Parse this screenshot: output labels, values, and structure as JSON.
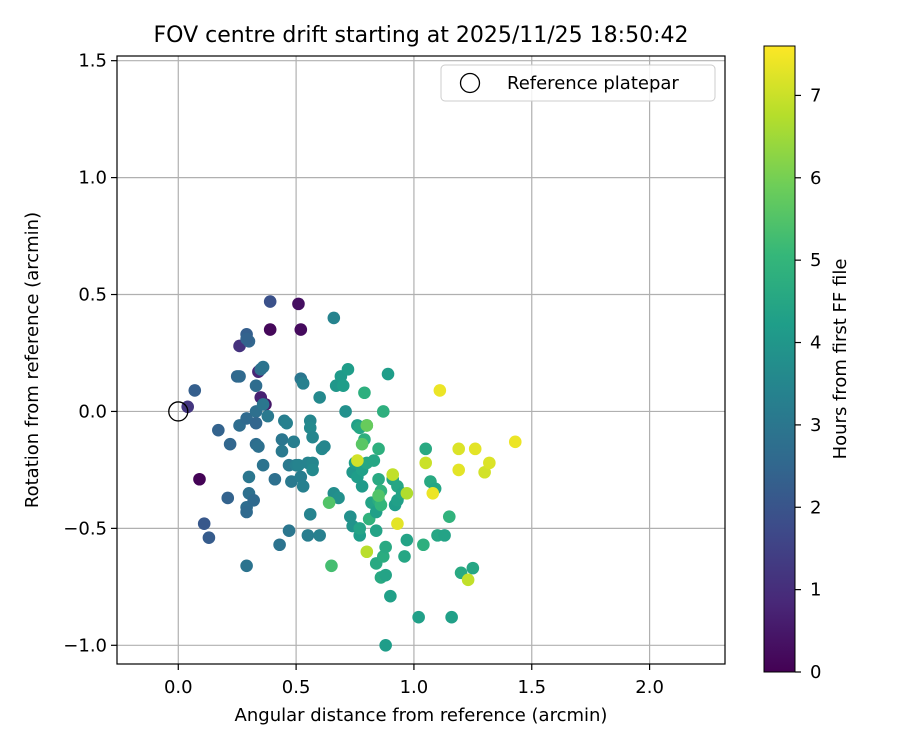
{
  "chart_data": {
    "type": "scatter",
    "title": "FOV centre drift starting at 2025/11/25 18:50:42",
    "xlabel": "Angular distance from reference (arcmin)",
    "ylabel": "Rotation from reference (arcmin)",
    "xlim": [
      -0.26,
      2.32
    ],
    "ylim": [
      -1.08,
      1.52
    ],
    "xticks": [
      0.0,
      0.5,
      1.0,
      1.5,
      2.0
    ],
    "xtick_labels": [
      "0.0",
      "0.5",
      "1.0",
      "1.5",
      "2.0"
    ],
    "yticks": [
      -1.0,
      -0.5,
      0.0,
      0.5,
      1.0,
      1.5
    ],
    "ytick_labels": [
      "−1.0",
      "−0.5",
      "0.0",
      "0.5",
      "1.0",
      "1.5"
    ],
    "grid": true,
    "legend": {
      "position": "top-right",
      "label": "Reference platepar"
    },
    "reference_point": {
      "x": 0.0,
      "y": 0.0
    },
    "colorbar": {
      "label": "Hours from first FF file",
      "range": [
        0,
        7.6
      ],
      "ticks": [
        0,
        1,
        2,
        3,
        4,
        5,
        6,
        7
      ],
      "tick_labels": [
        "0",
        "1",
        "2",
        "3",
        "4",
        "5",
        "6",
        "7"
      ],
      "colormap": [
        "#440154",
        "#482878",
        "#3e4989",
        "#31688e",
        "#26828e",
        "#1f9e89",
        "#35b779",
        "#6ece58",
        "#b5de2b",
        "#fde725"
      ]
    },
    "points": [
      {
        "x": 0.09,
        "y": -0.29,
        "h": 0.05
      },
      {
        "x": 0.51,
        "y": 0.46,
        "h": 0.3
      },
      {
        "x": 0.39,
        "y": 0.35,
        "h": 0.15
      },
      {
        "x": 0.52,
        "y": 0.35,
        "h": 0.2
      },
      {
        "x": 0.37,
        "y": 0.03,
        "h": 0.5
      },
      {
        "x": 0.34,
        "y": 0.17,
        "h": 0.8
      },
      {
        "x": 0.35,
        "y": 0.06,
        "h": 0.7
      },
      {
        "x": 0.04,
        "y": 0.02,
        "h": 1.2
      },
      {
        "x": 0.26,
        "y": 0.28,
        "h": 1.1
      },
      {
        "x": 0.39,
        "y": 0.47,
        "h": 1.9
      },
      {
        "x": 0.07,
        "y": 0.09,
        "h": 2.3
      },
      {
        "x": 0.11,
        "y": -0.48,
        "h": 2.1
      },
      {
        "x": 0.13,
        "y": -0.54,
        "h": 2.2
      },
      {
        "x": 0.17,
        "y": -0.08,
        "h": 2.4
      },
      {
        "x": 0.22,
        "y": -0.14,
        "h": 2.5
      },
      {
        "x": 0.21,
        "y": -0.37,
        "h": 2.4
      },
      {
        "x": 0.25,
        "y": 0.15,
        "h": 2.5
      },
      {
        "x": 0.26,
        "y": 0.15,
        "h": 2.6
      },
      {
        "x": 0.29,
        "y": 0.33,
        "h": 2.3
      },
      {
        "x": 0.3,
        "y": 0.3,
        "h": 2.5
      },
      {
        "x": 0.29,
        "y": 0.31,
        "h": 2.4
      },
      {
        "x": 0.26,
        "y": -0.06,
        "h": 2.7
      },
      {
        "x": 0.29,
        "y": -0.03,
        "h": 2.6
      },
      {
        "x": 0.29,
        "y": -0.41,
        "h": 2.7
      },
      {
        "x": 0.29,
        "y": -0.43,
        "h": 2.6
      },
      {
        "x": 0.3,
        "y": -0.35,
        "h": 2.8
      },
      {
        "x": 0.32,
        "y": -0.38,
        "h": 2.6
      },
      {
        "x": 0.33,
        "y": 0.11,
        "h": 2.7
      },
      {
        "x": 0.33,
        "y": 0.0,
        "h": 2.8
      },
      {
        "x": 0.33,
        "y": -0.05,
        "h": 2.5
      },
      {
        "x": 0.33,
        "y": -0.14,
        "h": 2.7
      },
      {
        "x": 0.34,
        "y": -0.15,
        "h": 2.8
      },
      {
        "x": 0.35,
        "y": 0.18,
        "h": 2.8
      },
      {
        "x": 0.36,
        "y": 0.19,
        "h": 2.9
      },
      {
        "x": 0.36,
        "y": -0.23,
        "h": 2.9
      },
      {
        "x": 0.36,
        "y": 0.03,
        "h": 3.0
      },
      {
        "x": 0.38,
        "y": -0.02,
        "h": 3.1
      },
      {
        "x": 0.3,
        "y": -0.28,
        "h": 3.0
      },
      {
        "x": 0.29,
        "y": -0.66,
        "h": 2.9
      },
      {
        "x": 0.41,
        "y": -0.29,
        "h": 2.8
      },
      {
        "x": 0.43,
        "y": -0.57,
        "h": 2.9
      },
      {
        "x": 0.44,
        "y": -0.12,
        "h": 3.0
      },
      {
        "x": 0.44,
        "y": -0.17,
        "h": 3.1
      },
      {
        "x": 0.45,
        "y": -0.04,
        "h": 3.2
      },
      {
        "x": 0.46,
        "y": -0.05,
        "h": 3.3
      },
      {
        "x": 0.47,
        "y": -0.23,
        "h": 3.1
      },
      {
        "x": 0.47,
        "y": -0.51,
        "h": 3.0
      },
      {
        "x": 0.48,
        "y": -0.3,
        "h": 3.1
      },
      {
        "x": 0.49,
        "y": -0.13,
        "h": 3.2
      },
      {
        "x": 0.5,
        "y": -0.23,
        "h": 3.3
      },
      {
        "x": 0.51,
        "y": -0.23,
        "h": 3.4
      },
      {
        "x": 0.52,
        "y": -0.28,
        "h": 3.2
      },
      {
        "x": 0.52,
        "y": 0.14,
        "h": 3.0
      },
      {
        "x": 0.53,
        "y": 0.12,
        "h": 3.3
      },
      {
        "x": 0.53,
        "y": -0.32,
        "h": 3.3
      },
      {
        "x": 0.55,
        "y": -0.22,
        "h": 3.4
      },
      {
        "x": 0.55,
        "y": -0.53,
        "h": 3.2
      },
      {
        "x": 0.56,
        "y": -0.44,
        "h": 3.4
      },
      {
        "x": 0.56,
        "y": -0.04,
        "h": 3.5
      },
      {
        "x": 0.56,
        "y": -0.07,
        "h": 3.6
      },
      {
        "x": 0.57,
        "y": -0.22,
        "h": 3.5
      },
      {
        "x": 0.57,
        "y": -0.25,
        "h": 3.6
      },
      {
        "x": 0.57,
        "y": -0.11,
        "h": 3.5
      },
      {
        "x": 0.6,
        "y": 0.06,
        "h": 3.6
      },
      {
        "x": 0.6,
        "y": -0.53,
        "h": 3.3
      },
      {
        "x": 0.61,
        "y": -0.16,
        "h": 3.6
      },
      {
        "x": 0.62,
        "y": -0.15,
        "h": 3.5
      },
      {
        "x": 0.66,
        "y": 0.4,
        "h": 3.4
      },
      {
        "x": 0.66,
        "y": -0.35,
        "h": 3.7
      },
      {
        "x": 0.67,
        "y": 0.11,
        "h": 4.0
      },
      {
        "x": 0.68,
        "y": -0.37,
        "h": 3.8
      },
      {
        "x": 0.69,
        "y": 0.15,
        "h": 4.1
      },
      {
        "x": 0.7,
        "y": 0.11,
        "h": 4.2
      },
      {
        "x": 0.71,
        "y": 0.0,
        "h": 3.8
      },
      {
        "x": 0.72,
        "y": 0.18,
        "h": 4.2
      },
      {
        "x": 0.73,
        "y": -0.45,
        "h": 3.8
      },
      {
        "x": 0.74,
        "y": -0.26,
        "h": 4.0
      },
      {
        "x": 0.74,
        "y": -0.49,
        "h": 3.9
      },
      {
        "x": 0.75,
        "y": -0.22,
        "h": 4.2
      },
      {
        "x": 0.76,
        "y": -0.06,
        "h": 4.3
      },
      {
        "x": 0.76,
        "y": -0.28,
        "h": 4.2
      },
      {
        "x": 0.77,
        "y": -0.53,
        "h": 4.2
      },
      {
        "x": 0.77,
        "y": -0.5,
        "h": 4.4
      },
      {
        "x": 0.77,
        "y": -0.07,
        "h": 4.5
      },
      {
        "x": 0.78,
        "y": -0.32,
        "h": 4.1
      },
      {
        "x": 0.78,
        "y": -0.25,
        "h": 4.3
      },
      {
        "x": 0.79,
        "y": 0.08,
        "h": 4.8
      },
      {
        "x": 0.79,
        "y": -0.12,
        "h": 4.8
      },
      {
        "x": 0.8,
        "y": -0.06,
        "h": 4.7
      },
      {
        "x": 0.8,
        "y": -0.22,
        "h": 4.5
      },
      {
        "x": 0.81,
        "y": -0.46,
        "h": 4.9
      },
      {
        "x": 0.82,
        "y": -0.39,
        "h": 4.4
      },
      {
        "x": 0.83,
        "y": -0.21,
        "h": 4.5
      },
      {
        "x": 0.84,
        "y": -0.43,
        "h": 4.3
      },
      {
        "x": 0.84,
        "y": -0.65,
        "h": 4.6
      },
      {
        "x": 0.84,
        "y": -0.51,
        "h": 4.4
      },
      {
        "x": 0.85,
        "y": -0.16,
        "h": 4.8
      },
      {
        "x": 0.85,
        "y": -0.29,
        "h": 4.6
      },
      {
        "x": 0.85,
        "y": -0.38,
        "h": 4.7
      },
      {
        "x": 0.86,
        "y": -0.34,
        "h": 4.9
      },
      {
        "x": 0.86,
        "y": -0.4,
        "h": 5.0
      },
      {
        "x": 0.86,
        "y": -0.71,
        "h": 4.6
      },
      {
        "x": 0.87,
        "y": 0.0,
        "h": 4.8
      },
      {
        "x": 0.87,
        "y": -0.62,
        "h": 4.7
      },
      {
        "x": 0.88,
        "y": -0.58,
        "h": 4.6
      },
      {
        "x": 0.88,
        "y": -0.7,
        "h": 4.4
      },
      {
        "x": 0.88,
        "y": -1.0,
        "h": 4.2
      },
      {
        "x": 0.89,
        "y": 0.16,
        "h": 4.2
      },
      {
        "x": 0.9,
        "y": -0.79,
        "h": 4.3
      },
      {
        "x": 0.91,
        "y": -0.29,
        "h": 4.4
      },
      {
        "x": 0.92,
        "y": -0.4,
        "h": 4.2
      },
      {
        "x": 0.93,
        "y": -0.38,
        "h": 4.3
      },
      {
        "x": 0.93,
        "y": -0.32,
        "h": 4.5
      },
      {
        "x": 0.95,
        "y": -0.35,
        "h": 4.4
      },
      {
        "x": 0.96,
        "y": -0.62,
        "h": 4.5
      },
      {
        "x": 0.97,
        "y": -0.55,
        "h": 4.4
      },
      {
        "x": 1.02,
        "y": -0.88,
        "h": 4.3
      },
      {
        "x": 1.04,
        "y": -0.57,
        "h": 4.8
      },
      {
        "x": 1.05,
        "y": -0.16,
        "h": 4.6
      },
      {
        "x": 1.07,
        "y": -0.3,
        "h": 4.6
      },
      {
        "x": 1.09,
        "y": -0.33,
        "h": 4.5
      },
      {
        "x": 1.1,
        "y": -0.53,
        "h": 4.5
      },
      {
        "x": 1.13,
        "y": -0.53,
        "h": 4.4
      },
      {
        "x": 1.15,
        "y": -0.45,
        "h": 4.9
      },
      {
        "x": 1.16,
        "y": -0.88,
        "h": 4.3
      },
      {
        "x": 1.2,
        "y": -0.69,
        "h": 4.6
      },
      {
        "x": 1.25,
        "y": -0.67,
        "h": 4.5
      },
      {
        "x": 0.64,
        "y": -0.39,
        "h": 5.5
      },
      {
        "x": 0.65,
        "y": -0.66,
        "h": 5.3
      },
      {
        "x": 0.78,
        "y": -0.14,
        "h": 5.6
      },
      {
        "x": 0.8,
        "y": -0.06,
        "h": 5.8
      },
      {
        "x": 0.8,
        "y": -0.6,
        "h": 6.8
      },
      {
        "x": 0.76,
        "y": -0.21,
        "h": 7.1
      },
      {
        "x": 0.85,
        "y": -0.36,
        "h": 5.5
      },
      {
        "x": 0.91,
        "y": -0.27,
        "h": 6.9
      },
      {
        "x": 0.93,
        "y": -0.48,
        "h": 7.3
      },
      {
        "x": 0.97,
        "y": -0.35,
        "h": 6.7
      },
      {
        "x": 1.05,
        "y": -0.22,
        "h": 7.0
      },
      {
        "x": 1.08,
        "y": -0.35,
        "h": 7.4
      },
      {
        "x": 1.11,
        "y": 0.09,
        "h": 7.4
      },
      {
        "x": 1.19,
        "y": -0.16,
        "h": 7.2
      },
      {
        "x": 1.19,
        "y": -0.25,
        "h": 7.3
      },
      {
        "x": 1.23,
        "y": -0.72,
        "h": 6.9
      },
      {
        "x": 1.26,
        "y": -0.16,
        "h": 7.3
      },
      {
        "x": 1.3,
        "y": -0.26,
        "h": 7.1
      },
      {
        "x": 1.32,
        "y": -0.22,
        "h": 7.2
      },
      {
        "x": 1.43,
        "y": -0.13,
        "h": 7.4
      }
    ]
  }
}
